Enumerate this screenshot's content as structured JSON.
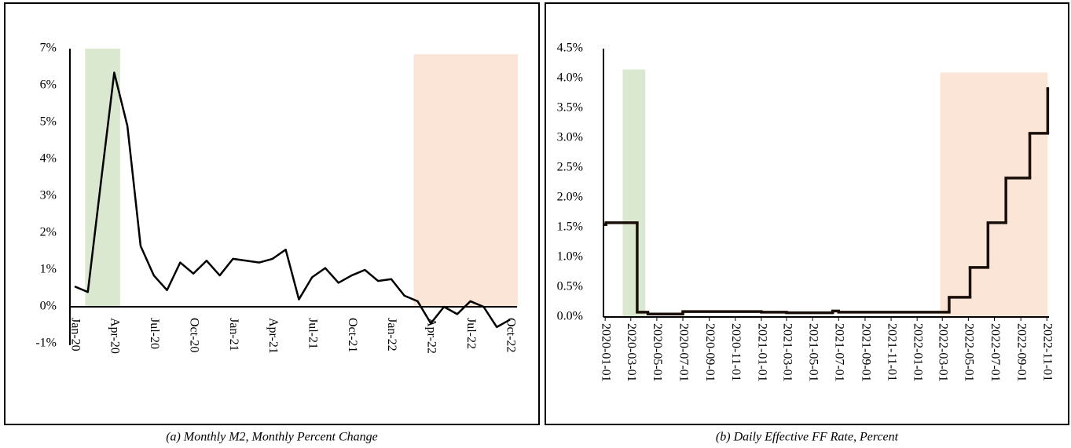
{
  "chart_data": [
    {
      "type": "line",
      "title": "(a) Monthly M2, Monthly Percent Change",
      "categories": [
        "Jan-20",
        null,
        null,
        "Apr-20",
        null,
        null,
        "Jul-20",
        null,
        null,
        "Oct-20",
        null,
        null,
        "Jan-21",
        null,
        null,
        "Apr-21",
        null,
        null,
        "Jul-21",
        null,
        null,
        "Oct-21",
        null,
        null,
        "Jan-22",
        null,
        null,
        "Apr-22",
        null,
        null,
        "Jul-22",
        null,
        null,
        "Oct-22"
      ],
      "values": [
        0.55,
        0.4,
        3.4,
        6.35,
        4.9,
        1.65,
        0.85,
        0.45,
        1.2,
        0.9,
        1.25,
        0.85,
        1.3,
        1.25,
        1.2,
        1.3,
        1.55,
        0.2,
        0.8,
        1.05,
        0.65,
        0.85,
        1.0,
        0.7,
        0.75,
        0.3,
        0.15,
        -0.45,
        0.0,
        -0.2,
        0.15,
        0.0,
        -0.55,
        -0.35
      ],
      "color": "#000000",
      "ylim": [
        -1,
        7
      ],
      "yticks": [
        {
          "value": -1,
          "label": "-1%"
        },
        {
          "value": 0,
          "label": "0%"
        },
        {
          "value": 1,
          "label": "1%"
        },
        {
          "value": 2,
          "label": "2%"
        },
        {
          "value": 3,
          "label": "3%"
        },
        {
          "value": 4,
          "label": "4%"
        },
        {
          "value": 5,
          "label": "5%"
        },
        {
          "value": 6,
          "label": "6%"
        },
        {
          "value": 7,
          "label": "7%"
        }
      ],
      "shaded": [
        {
          "start": 0.8,
          "end": 3.45,
          "top": 7,
          "color": "#d9e8cf"
        },
        {
          "start": 25.7,
          "end": 33.6,
          "top": 6.85,
          "color": "#fbe5d7"
        }
      ]
    },
    {
      "type": "step",
      "title": "(b) Daily Effective FF Rate, Percent",
      "x": [
        "2020-01-01",
        "2020-01-03",
        "2020-03-16",
        "2020-04-10",
        "2020-07-01",
        "2021-01-01",
        "2021-03-01",
        "2021-06-17",
        "2021-07-01",
        "2022-03-17",
        "2022-05-05",
        "2022-06-16",
        "2022-07-28",
        "2022-09-22",
        "2022-11-03"
      ],
      "values": [
        1.55,
        1.58,
        0.08,
        0.05,
        0.09,
        0.08,
        0.07,
        0.1,
        0.08,
        0.33,
        0.83,
        1.58,
        2.33,
        3.08,
        3.83
      ],
      "color": "#1a0f08",
      "xlim": [
        "2019-12-28",
        "2022-11-06"
      ],
      "xticks": [
        "2020-01-01",
        "2020-03-01",
        "2020-05-01",
        "2020-07-01",
        "2020-09-01",
        "2020-11-01",
        "2021-01-01",
        "2021-03-01",
        "2021-05-01",
        "2021-07-01",
        "2021-09-01",
        "2021-11-01",
        "2022-01-01",
        "2022-03-01",
        "2022-05-01",
        "2022-07-01",
        "2022-09-01",
        "2022-11-01"
      ],
      "ylim": [
        0,
        4.5
      ],
      "yticks": [
        {
          "value": 0,
          "label": "0.0%"
        },
        {
          "value": 0.5,
          "label": "0.5%"
        },
        {
          "value": 1,
          "label": "1.0%"
        },
        {
          "value": 1.5,
          "label": "1.5%"
        },
        {
          "value": 2,
          "label": "2.0%"
        },
        {
          "value": 2.5,
          "label": "2.5%"
        },
        {
          "value": 3,
          "label": "3.0%"
        },
        {
          "value": 3.5,
          "label": "3.5%"
        },
        {
          "value": 4,
          "label": "4.0%"
        },
        {
          "value": 4.5,
          "label": "4.5%"
        }
      ],
      "shaded": [
        {
          "start": "2020-02-11",
          "end": "2020-04-04",
          "top": 4.15,
          "color": "#d9e8cf"
        },
        {
          "start": "2022-02-24",
          "end": "2022-11-03",
          "top": 4.1,
          "color": "#fbe5d7"
        }
      ]
    }
  ]
}
